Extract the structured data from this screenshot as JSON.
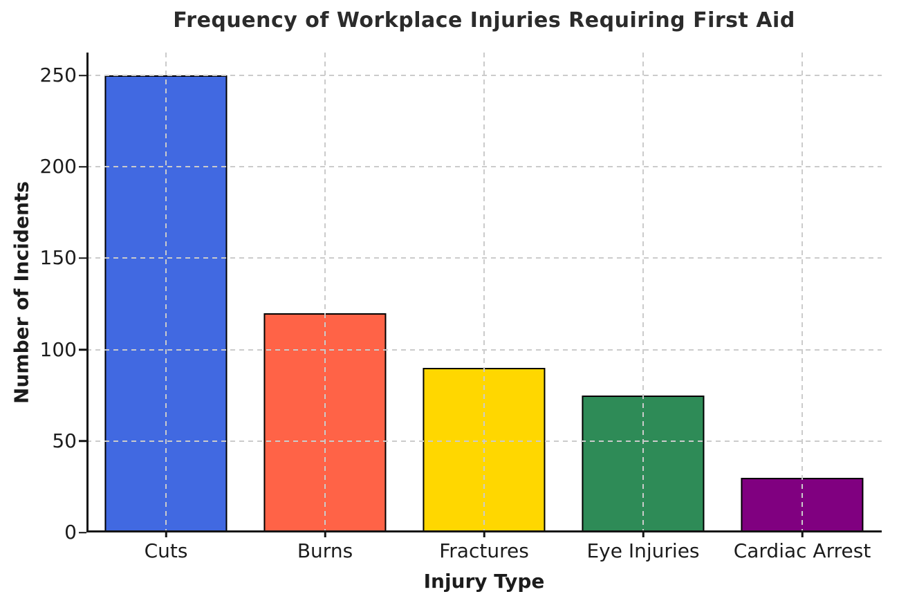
{
  "chart_data": {
    "type": "bar",
    "title": "Frequency of Workplace Injuries Requiring First Aid",
    "xlabel": "Injury Type",
    "ylabel": "Number of Incidents",
    "categories": [
      "Cuts",
      "Burns",
      "Fractures",
      "Eye Injuries",
      "Cardiac Arrest"
    ],
    "values": [
      250,
      120,
      90,
      75,
      30
    ],
    "bar_colors": [
      "#4169E1",
      "#FF6347",
      "#FFD700",
      "#2E8B57",
      "#800080"
    ],
    "bar_edge_color": "#000000",
    "yticks": [
      0,
      50,
      100,
      150,
      200,
      250
    ],
    "ylim": [
      0,
      262.5
    ],
    "bar_width_fraction": 0.77,
    "grid": "dashed, horizontal and vertical, drawn above bars",
    "grid_color": "#CBCBCB",
    "legend": "none",
    "background_color": "#FFFFFF",
    "text_color": "#1C1C1C",
    "title_color": "#2B2B2B",
    "spine_color": "#141414",
    "spines_visible": [
      "left",
      "bottom"
    ]
  }
}
